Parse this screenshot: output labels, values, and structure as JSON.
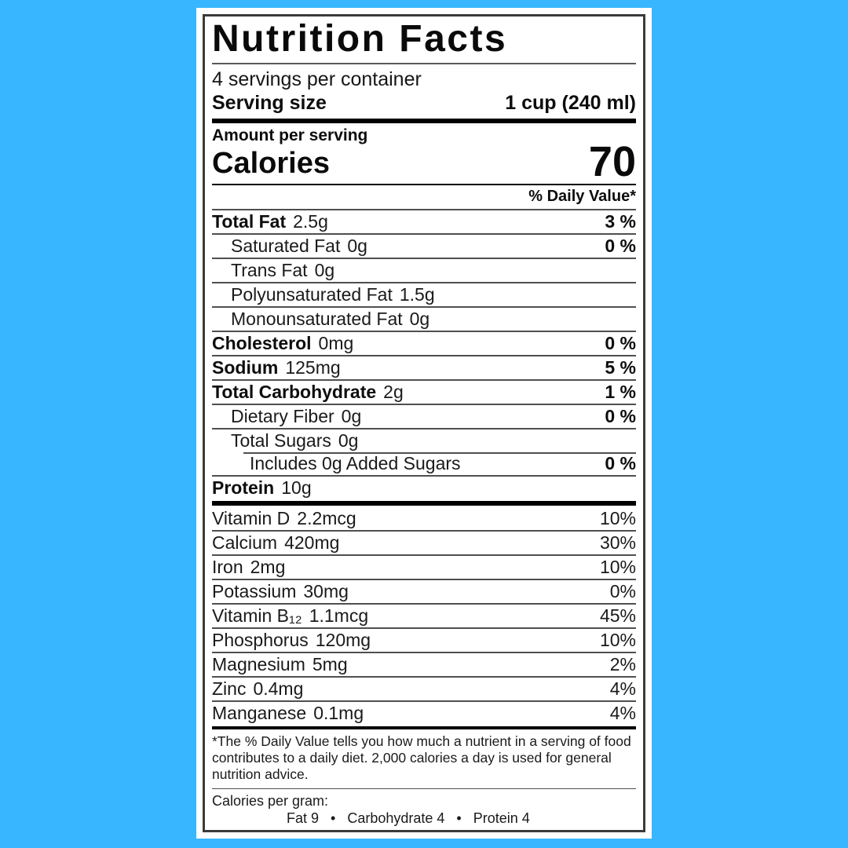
{
  "page": {
    "background_color": "#38B6FF",
    "label_background_color": "#FFFFFF",
    "label_border_color": "#3B3B3B"
  },
  "label": {
    "title": "Nutrition Facts",
    "servings_per_container": "4 servings per container",
    "serving_size_label": "Serving size",
    "serving_size_value": "1 cup (240 ml)",
    "amount_per_serving": "Amount per serving",
    "calories_label": "Calories",
    "calories_value": "70",
    "daily_value_header": "% Daily Value*",
    "nutrient_rows": [
      {
        "label": "Total Fat",
        "amount": "2.5g",
        "dv": "3 %"
      },
      {
        "label": "Saturated Fat",
        "amount": "0g",
        "dv": "0 %"
      },
      {
        "label": "Trans Fat",
        "amount": "0g",
        "dv": ""
      },
      {
        "label": "Polyunsaturated Fat",
        "amount": "1.5g",
        "dv": ""
      },
      {
        "label": "Monounsaturated Fat",
        "amount": "0g",
        "dv": ""
      },
      {
        "label": "Cholesterol",
        "amount": "0mg",
        "dv": "0 %"
      },
      {
        "label": "Sodium",
        "amount": "125mg",
        "dv": "5 %"
      },
      {
        "label": "Total Carbohydrate",
        "amount": "2g",
        "dv": "1 %"
      },
      {
        "label": "Dietary Fiber",
        "amount": "0g",
        "dv": "0 %"
      },
      {
        "label": "Total Sugars",
        "amount": "0g",
        "dv": ""
      },
      {
        "label": "Includes 0g Added Sugars",
        "amount": "",
        "dv": "0 %"
      },
      {
        "label": "Protein",
        "amount": "10g",
        "dv": ""
      }
    ],
    "vitamin_rows": [
      {
        "label": "Vitamin D",
        "amount": "2.2mcg",
        "dv": "10%"
      },
      {
        "label": "Calcium",
        "amount": "420mg",
        "dv": "30%"
      },
      {
        "label": "Iron",
        "amount": "2mg",
        "dv": "10%"
      },
      {
        "label": "Potassium",
        "amount": "30mg",
        "dv": "0%"
      },
      {
        "label": "Vitamin B₁₂",
        "amount": "1.1mcg",
        "dv": "45%"
      },
      {
        "label": "Phosphorus",
        "amount": "120mg",
        "dv": "10%"
      },
      {
        "label": "Magnesium",
        "amount": "5mg",
        "dv": "2%"
      },
      {
        "label": "Zinc",
        "amount": "0.4mg",
        "dv": "4%"
      },
      {
        "label": "Manganese",
        "amount": "0.1mg",
        "dv": "4%"
      }
    ],
    "footnote": "*The % Daily Value tells you how much a nutrient in a serving of food contributes to a daily diet. 2,000 calories a day is used for general nutrition advice.",
    "calories_per_gram_label": "Calories per gram:",
    "calories_per_gram_values": "Fat 9   •   Carbohydrate 4   •   Protein 4"
  }
}
